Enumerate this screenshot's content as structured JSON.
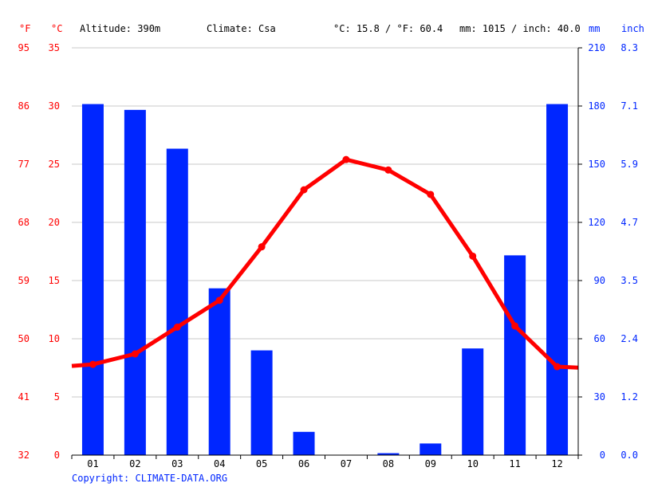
{
  "header": {
    "altitude": "Altitude: 390m",
    "climate": "Climate: Csa",
    "temperature_summary": "°C: 15.8 / °F: 60.4",
    "precipitation_summary": "mm: 1015 / inch: 40.0"
  },
  "axis_units": {
    "fahrenheit": "°F",
    "celsius": "°C",
    "millimeters": "mm",
    "inches": "inch"
  },
  "copyright": "Copyright: CLIMATE-DATA.ORG",
  "colors": {
    "temperature": "#ff0000",
    "precipitation": "#0026ff",
    "grid": "#c8c8c8",
    "axis": "#000000"
  },
  "chart_data": {
    "type": "bar",
    "categories": [
      "01",
      "02",
      "03",
      "04",
      "05",
      "06",
      "07",
      "08",
      "09",
      "10",
      "11",
      "12"
    ],
    "series": [
      {
        "type": "bar",
        "axis": "right",
        "color": "#0026ff",
        "values": [
          181,
          178,
          158,
          86,
          54,
          12,
          0,
          1,
          6,
          55,
          103,
          181
        ]
      },
      {
        "type": "line",
        "axis": "left",
        "color": "#ff0000",
        "values": [
          7.8,
          8.7,
          11.0,
          13.3,
          17.9,
          22.8,
          25.4,
          24.5,
          22.4,
          17.1,
          11.1,
          7.6
        ]
      }
    ],
    "y_left": {
      "ticks_celsius": [
        0,
        5,
        10,
        15,
        20,
        25,
        30,
        35
      ],
      "ticks_fahrenheit": [
        "32",
        "41",
        "50",
        "59",
        "68",
        "77",
        "86",
        "95"
      ],
      "ylim": [
        0,
        35
      ]
    },
    "y_right": {
      "ticks_mm": [
        0,
        30,
        60,
        90,
        120,
        150,
        180,
        210
      ],
      "ticks_inch": [
        "0.0",
        "1.2",
        "2.4",
        "3.5",
        "4.7",
        "5.9",
        "7.1",
        "8.3"
      ],
      "ylim": [
        0,
        210
      ]
    },
    "grid": true,
    "legend": "none"
  }
}
